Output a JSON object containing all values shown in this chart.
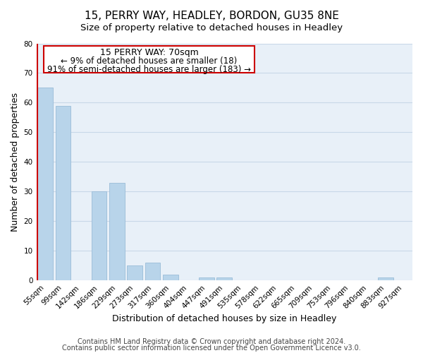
{
  "title": "15, PERRY WAY, HEADLEY, BORDON, GU35 8NE",
  "subtitle": "Size of property relative to detached houses in Headley",
  "xlabel": "Distribution of detached houses by size in Headley",
  "ylabel": "Number of detached properties",
  "footer_line1": "Contains HM Land Registry data © Crown copyright and database right 2024.",
  "footer_line2": "Contains public sector information licensed under the Open Government Licence v3.0.",
  "bin_labels": [
    "55sqm",
    "99sqm",
    "142sqm",
    "186sqm",
    "229sqm",
    "273sqm",
    "317sqm",
    "360sqm",
    "404sqm",
    "447sqm",
    "491sqm",
    "535sqm",
    "578sqm",
    "622sqm",
    "665sqm",
    "709sqm",
    "753sqm",
    "796sqm",
    "840sqm",
    "883sqm",
    "927sqm"
  ],
  "bar_values": [
    65,
    59,
    0,
    30,
    33,
    5,
    6,
    2,
    0,
    1,
    1,
    0,
    0,
    0,
    0,
    0,
    0,
    0,
    0,
    1,
    0
  ],
  "bar_color": "#b8d4ea",
  "bar_edge_color": "#9abcd8",
  "red_line_x": 0,
  "annotation_text_line1": "15 PERRY WAY: 70sqm",
  "annotation_text_line2": "← 9% of detached houses are smaller (18)",
  "annotation_text_line3": "91% of semi-detached houses are larger (183) →",
  "ylim": [
    0,
    80
  ],
  "yticks": [
    0,
    10,
    20,
    30,
    40,
    50,
    60,
    70,
    80
  ],
  "background_color": "#ffffff",
  "plot_bg_color": "#e8f0f8",
  "grid_color": "#c8d8e8",
  "title_fontsize": 11,
  "subtitle_fontsize": 9.5,
  "axis_label_fontsize": 9,
  "tick_fontsize": 7.5,
  "footer_fontsize": 7,
  "annotation_fontsize": 9,
  "highlight_color": "#cc0000"
}
